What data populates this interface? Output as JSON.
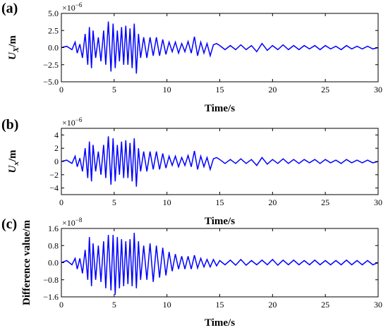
{
  "chart_data": [
    {
      "type": "line",
      "panel": "(a)",
      "xlabel": "Time/s",
      "ylabel": "U",
      "ylabel_subscript": "X",
      "ylabel_suffix": "/m",
      "multiplier": "×10",
      "multiplier_exp": "−6",
      "xlim": [
        0,
        30
      ],
      "ylim": [
        -5,
        5
      ],
      "xticks": [
        "0",
        "5",
        "10",
        "15",
        "20",
        "25",
        "30"
      ],
      "yticks": [
        "−5.0",
        "−2.5",
        "0.0",
        "2.5",
        "5.0"
      ],
      "ytick_values": [
        -5,
        -2.5,
        0,
        2.5,
        5
      ],
      "line_color": "#0000ff",
      "x": [
        0,
        0.5,
        1,
        1.3,
        1.5,
        1.75,
        2,
        2.25,
        2.5,
        2.65,
        2.85,
        3.0,
        3.25,
        3.5,
        3.75,
        4.0,
        4.2,
        4.45,
        4.7,
        4.9,
        5.1,
        5.3,
        5.5,
        5.7,
        5.9,
        6.1,
        6.3,
        6.5,
        6.7,
        6.9,
        7.1,
        7.3,
        7.5,
        7.8,
        8.1,
        8.4,
        8.7,
        9.0,
        9.3,
        9.6,
        9.9,
        10.2,
        10.5,
        10.8,
        11.1,
        11.4,
        11.7,
        12.0,
        12.3,
        12.6,
        12.9,
        13.2,
        13.5,
        13.8,
        14.1,
        14.4,
        14.7,
        15.0,
        15.5,
        16,
        16.5,
        17,
        17.5,
        18,
        18.5,
        19,
        19.5,
        20,
        20.5,
        21,
        21.5,
        22,
        22.5,
        23,
        23.5,
        24,
        24.5,
        25,
        25.5,
        26,
        26.5,
        27,
        27.5,
        28,
        28.5,
        29,
        29.5,
        30
      ],
      "y": [
        0,
        0.2,
        -0.3,
        0.8,
        -0.8,
        0.5,
        -1.5,
        2.0,
        -2.5,
        3.0,
        -3.0,
        2.5,
        -1.5,
        1.5,
        -2.0,
        2.5,
        -2.5,
        3.8,
        -3.5,
        3.5,
        -3.0,
        2.5,
        -2.0,
        3.0,
        -2.5,
        3.2,
        -2.5,
        2.8,
        -3.0,
        3.5,
        -3.8,
        2.0,
        -1.5,
        1.5,
        -1.5,
        1.5,
        -1.2,
        1.5,
        -1.2,
        1.2,
        -1.0,
        0.8,
        -0.6,
        0.8,
        -0.8,
        0.6,
        -0.6,
        0.9,
        -0.8,
        1.6,
        -1.2,
        0.8,
        -0.8,
        0.6,
        -1.2,
        0.4,
        0.6,
        0.3,
        -0.3,
        0.3,
        -0.3,
        0.4,
        -0.3,
        0.3,
        -0.6,
        0.6,
        -0.4,
        0.3,
        -0.3,
        0.4,
        -0.3,
        0.3,
        -0.3,
        0.3,
        -0.2,
        0.3,
        -0.3,
        0.3,
        -0.2,
        0.2,
        -0.3,
        0.3,
        -0.2,
        0.2,
        -0.2,
        0.2,
        -0.2,
        0
      ]
    },
    {
      "type": "line",
      "panel": "(b)",
      "xlabel": "Time/s",
      "ylabel": "U",
      "ylabel_subscript": "x",
      "ylabel_suffix": "/m",
      "multiplier": "×10",
      "multiplier_exp": "−6",
      "xlim": [
        0,
        30
      ],
      "ylim": [
        -5,
        5
      ],
      "xticks": [
        "0",
        "5",
        "10",
        "15",
        "20",
        "25",
        "30"
      ],
      "yticks": [
        "−4",
        "−2",
        "0",
        "2",
        "4"
      ],
      "ytick_values": [
        -4,
        -2,
        0,
        2,
        4
      ],
      "line_color": "#0000ff",
      "x": [
        0,
        0.5,
        1,
        1.3,
        1.5,
        1.75,
        2,
        2.25,
        2.5,
        2.65,
        2.85,
        3.0,
        3.25,
        3.5,
        3.75,
        4.0,
        4.2,
        4.45,
        4.7,
        4.9,
        5.1,
        5.3,
        5.5,
        5.7,
        5.9,
        6.1,
        6.3,
        6.5,
        6.7,
        6.9,
        7.1,
        7.3,
        7.5,
        7.8,
        8.1,
        8.4,
        8.7,
        9.0,
        9.3,
        9.6,
        9.9,
        10.2,
        10.5,
        10.8,
        11.1,
        11.4,
        11.7,
        12.0,
        12.3,
        12.6,
        12.9,
        13.2,
        13.5,
        13.8,
        14.1,
        14.4,
        14.7,
        15.0,
        15.5,
        16,
        16.5,
        17,
        17.5,
        18,
        18.5,
        19,
        19.5,
        20,
        20.5,
        21,
        21.5,
        22,
        22.5,
        23,
        23.5,
        24,
        24.5,
        25,
        25.5,
        26,
        26.5,
        27,
        27.5,
        28,
        28.5,
        29,
        29.5,
        30
      ],
      "y": [
        0,
        0.2,
        -0.3,
        0.8,
        -0.8,
        0.5,
        -1.5,
        2.0,
        -2.5,
        3.0,
        -3.0,
        2.5,
        -1.5,
        1.5,
        -2.0,
        2.5,
        -2.5,
        3.8,
        -3.5,
        3.5,
        -3.0,
        2.5,
        -2.0,
        3.0,
        -2.5,
        3.2,
        -2.5,
        2.8,
        -3.0,
        3.5,
        -3.8,
        2.0,
        -1.5,
        1.5,
        -1.5,
        1.5,
        -1.2,
        1.5,
        -1.2,
        1.2,
        -1.0,
        0.8,
        -0.6,
        0.8,
        -0.8,
        0.6,
        -0.6,
        0.9,
        -0.8,
        1.6,
        -1.2,
        0.8,
        -0.8,
        0.6,
        -1.2,
        0.4,
        0.6,
        0.3,
        -0.3,
        0.3,
        -0.3,
        0.4,
        -0.3,
        0.3,
        -0.6,
        0.6,
        -0.4,
        0.3,
        -0.3,
        0.4,
        -0.3,
        0.3,
        -0.3,
        0.3,
        -0.2,
        0.3,
        -0.3,
        0.3,
        -0.2,
        0.2,
        -0.3,
        0.3,
        -0.2,
        0.2,
        -0.2,
        0.2,
        -0.2,
        0
      ]
    },
    {
      "type": "line",
      "panel": "(c)",
      "xlabel": "Time/s",
      "ylabel": "Difference value/m",
      "ylabel_subscript": "",
      "ylabel_suffix": "",
      "multiplier": "×10",
      "multiplier_exp": "−8",
      "xlim": [
        0,
        30
      ],
      "ylim": [
        -1.6,
        1.6
      ],
      "xticks": [
        "0",
        "5",
        "10",
        "15",
        "20",
        "25",
        "30"
      ],
      "yticks": [
        "−1.6",
        "−0.8",
        "0.0",
        "0.8",
        "1.6"
      ],
      "ytick_values": [
        -1.6,
        -0.8,
        0,
        0.8,
        1.6
      ],
      "line_color": "#0000ff",
      "x": [
        0,
        0.5,
        1,
        1.3,
        1.5,
        1.75,
        2,
        2.25,
        2.5,
        2.65,
        2.85,
        3.0,
        3.25,
        3.5,
        3.75,
        4.0,
        4.2,
        4.45,
        4.7,
        4.9,
        5.1,
        5.3,
        5.5,
        5.7,
        5.9,
        6.1,
        6.3,
        6.5,
        6.7,
        6.9,
        7.1,
        7.3,
        7.5,
        7.8,
        8.1,
        8.4,
        8.7,
        9.0,
        9.3,
        9.6,
        9.9,
        10.2,
        10.5,
        10.8,
        11.1,
        11.4,
        11.7,
        12.0,
        12.3,
        12.6,
        12.9,
        13.2,
        13.5,
        13.8,
        14.1,
        14.4,
        14.7,
        15.0,
        15.5,
        16,
        16.5,
        17,
        17.5,
        18,
        18.5,
        19,
        19.5,
        20,
        20.5,
        21,
        21.5,
        22,
        22.5,
        23,
        23.5,
        24,
        24.5,
        25,
        25.5,
        26,
        26.5,
        27,
        27.5,
        28,
        28.5,
        29,
        29.5,
        30
      ],
      "y": [
        0,
        0.1,
        -0.1,
        0.2,
        -0.3,
        0.2,
        -0.5,
        0.6,
        -0.8,
        1.2,
        -1.1,
        0.9,
        -0.8,
        0.8,
        -0.9,
        1.0,
        -1.2,
        1.3,
        -1.3,
        1.3,
        -1.5,
        1.2,
        -1.2,
        1.1,
        -1.1,
        1.0,
        -1.0,
        1.1,
        -1.1,
        1.4,
        -1.2,
        1.0,
        -0.8,
        0.8,
        -0.8,
        0.9,
        -0.9,
        0.8,
        -0.7,
        0.7,
        -0.6,
        0.5,
        -0.4,
        0.4,
        -0.3,
        0.3,
        -0.3,
        0.3,
        -0.3,
        0.35,
        -0.25,
        0.2,
        -0.2,
        0.15,
        -0.2,
        0.15,
        -0.15,
        0.1,
        -0.1,
        0.12,
        -0.12,
        0.15,
        -0.12,
        0.1,
        -0.1,
        0.12,
        -0.1,
        0.15,
        -0.12,
        0.12,
        -0.1,
        0.12,
        -0.1,
        0.1,
        -0.1,
        0.12,
        -0.1,
        0.1,
        -0.1,
        0.1,
        -0.1,
        0.12,
        -0.1,
        0.1,
        -0.1,
        0.1,
        -0.1,
        0
      ]
    }
  ]
}
